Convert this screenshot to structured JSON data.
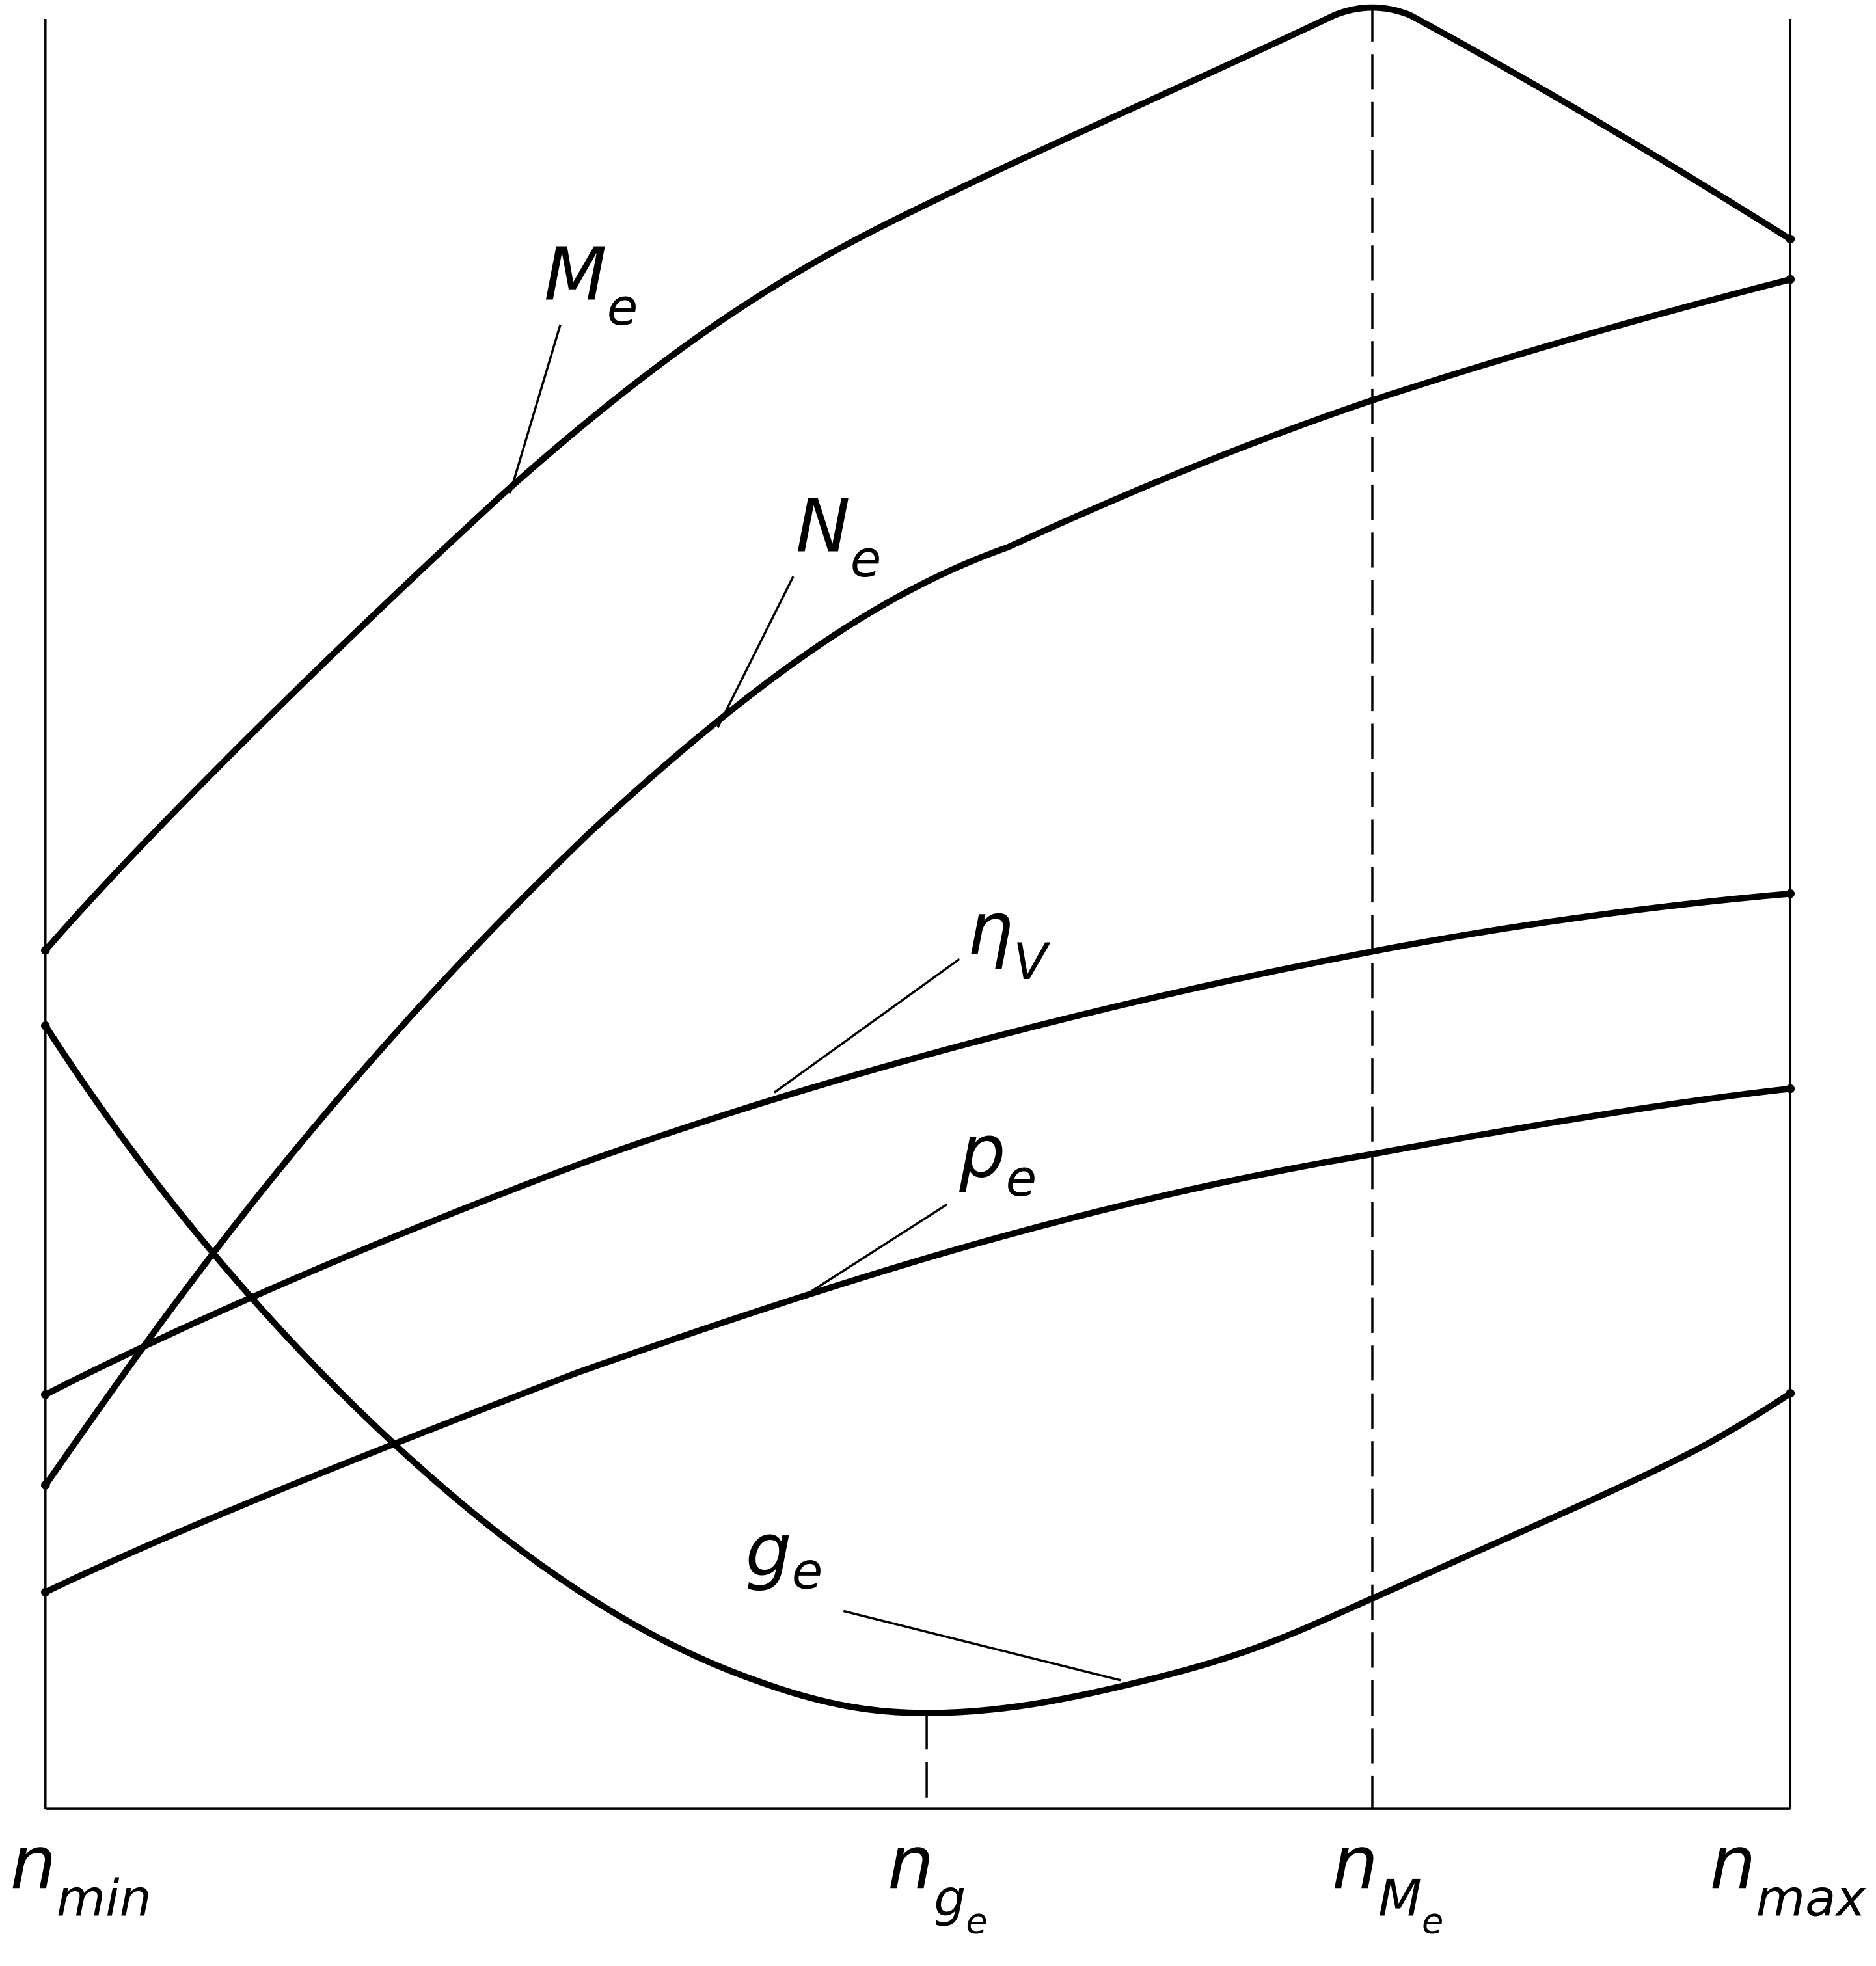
{
  "curves": [
    {
      "label": "M",
      "sub": "e"
    },
    {
      "label": "N",
      "sub": "e"
    },
    {
      "label": "η",
      "sub": "V"
    },
    {
      "label": "p",
      "sub": "e"
    },
    {
      "label": "g",
      "sub": "e"
    }
  ],
  "axis_labels": [
    {
      "label": "n",
      "sub": "min"
    },
    {
      "label": "n",
      "sub": "g",
      "sub_sub": "e"
    },
    {
      "label": "n",
      "sub": "M",
      "sub_sub": "e"
    },
    {
      "label": "n",
      "sub": "max"
    }
  ]
}
